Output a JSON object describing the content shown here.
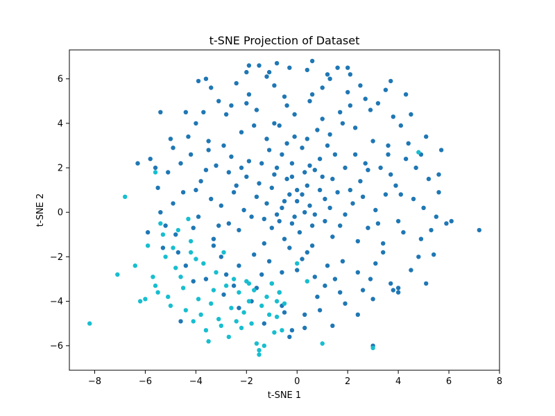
{
  "chart_data": {
    "type": "scatter",
    "title": "t-SNE Projection of Dataset",
    "xlabel": "t-SNE 1",
    "ylabel": "t-SNE 2",
    "xlim": [
      -9,
      8
    ],
    "ylim": [
      -7.1,
      7.3
    ],
    "xticks": [
      -8,
      -6,
      -4,
      -2,
      0,
      2,
      4,
      6,
      8
    ],
    "yticks": [
      -6,
      -4,
      -2,
      0,
      2,
      4,
      6
    ],
    "grid": false,
    "legend": "none",
    "series": [
      {
        "color": "#1f77b4",
        "points": [
          [
            0.0,
            0.5
          ],
          [
            -0.3,
            0.8
          ],
          [
            0.4,
            1.2
          ],
          [
            -0.6,
            0.2
          ],
          [
            0.7,
            -0.1
          ],
          [
            -1.0,
            1.1
          ],
          [
            1.1,
            0.6
          ],
          [
            -0.2,
            -0.5
          ],
          [
            0.3,
            1.8
          ],
          [
            -1.3,
            -0.3
          ],
          [
            1.4,
            1.5
          ],
          [
            -0.8,
            2.0
          ],
          [
            0.9,
            2.4
          ],
          [
            -1.6,
            0.7
          ],
          [
            1.7,
            -0.6
          ],
          [
            -0.5,
            -1.2
          ],
          [
            0.6,
            -1.5
          ],
          [
            -2.0,
            1.6
          ],
          [
            2.1,
            1.0
          ],
          [
            -1.1,
            2.8
          ],
          [
            1.2,
            3.0
          ],
          [
            -2.3,
            -0.8
          ],
          [
            2.4,
            -1.3
          ],
          [
            -0.1,
            3.4
          ],
          [
            0.2,
            -2.1
          ],
          [
            -2.6,
            2.5
          ],
          [
            2.7,
            2.2
          ],
          [
            -1.7,
            -1.9
          ],
          [
            1.8,
            -2.2
          ],
          [
            -3.0,
            0.3
          ],
          [
            3.1,
            0.1
          ],
          [
            -0.9,
            4.0
          ],
          [
            1.0,
            4.2
          ],
          [
            -2.2,
            3.6
          ],
          [
            2.3,
            3.8
          ],
          [
            -3.3,
            -1.5
          ],
          [
            3.4,
            -1.8
          ],
          [
            -1.4,
            -2.8
          ],
          [
            1.5,
            -3.0
          ],
          [
            -3.6,
            1.9
          ],
          [
            3.7,
            1.7
          ],
          [
            -0.4,
            4.8
          ],
          [
            0.5,
            5.0
          ],
          [
            -2.8,
            4.4
          ],
          [
            2.9,
            4.6
          ],
          [
            -3.9,
            -0.2
          ],
          [
            4.0,
            -0.4
          ],
          [
            -1.9,
            5.3
          ],
          [
            2.0,
            5.4
          ],
          [
            -0.7,
            -3.6
          ],
          [
            0.8,
            -3.8
          ],
          [
            -4.2,
            2.6
          ],
          [
            4.3,
            2.4
          ],
          [
            -3.5,
            3.2
          ],
          [
            3.6,
            3.0
          ],
          [
            -4.5,
            0.9
          ],
          [
            4.6,
            0.6
          ],
          [
            -2.5,
            -3.3
          ],
          [
            2.6,
            -3.5
          ],
          [
            -1.2,
            6.1
          ],
          [
            1.3,
            6.0
          ],
          [
            -3.1,
            5.0
          ],
          [
            3.2,
            4.9
          ],
          [
            -4.8,
            -1.0
          ],
          [
            4.9,
            -1.2
          ],
          [
            -0.3,
            6.5
          ],
          [
            0.4,
            6.4
          ],
          [
            -4.0,
            4.0
          ],
          [
            4.1,
            3.9
          ],
          [
            -5.1,
            1.8
          ],
          [
            5.2,
            1.5
          ],
          [
            -2.0,
            6.3
          ],
          [
            2.1,
            6.2
          ],
          [
            -0.6,
            -4.2
          ],
          [
            0.9,
            -4.4
          ],
          [
            -5.4,
            0.0
          ],
          [
            5.5,
            -0.2
          ],
          [
            -4.4,
            -2.4
          ],
          [
            4.5,
            -2.6
          ],
          [
            -3.6,
            -3.0
          ],
          [
            3.7,
            -3.2
          ],
          [
            -1.8,
            -4.0
          ],
          [
            1.9,
            -4.1
          ],
          [
            -0.2,
            2.2
          ],
          [
            0.1,
            -0.9
          ],
          [
            -0.8,
            -0.1
          ],
          [
            0.5,
            0.3
          ],
          [
            -0.4,
            1.5
          ],
          [
            0.7,
            1.9
          ],
          [
            -1.5,
            1.3
          ],
          [
            1.6,
            0.9
          ],
          [
            -1.0,
            -0.7
          ],
          [
            1.1,
            -0.4
          ],
          [
            -0.6,
            2.6
          ],
          [
            0.2,
            2.9
          ],
          [
            -2.1,
            0.1
          ],
          [
            2.2,
            0.4
          ],
          [
            -1.9,
            2.3
          ],
          [
            1.9,
            2.0
          ],
          [
            -2.4,
            1.2
          ],
          [
            2.5,
            1.4
          ],
          [
            -0.3,
            -1.6
          ],
          [
            0.4,
            -1.8
          ],
          [
            -1.2,
            3.3
          ],
          [
            1.3,
            3.5
          ],
          [
            -2.7,
            -0.5
          ],
          [
            2.8,
            -0.7
          ],
          [
            -1.3,
            -1.4
          ],
          [
            1.4,
            -1.1
          ],
          [
            -3.2,
            2.1
          ],
          [
            3.3,
            2.0
          ],
          [
            -0.7,
            3.9
          ],
          [
            0.8,
            3.7
          ],
          [
            -2.9,
            3.0
          ],
          [
            3.0,
            3.2
          ],
          [
            -3.4,
            0.6
          ],
          [
            3.5,
            0.8
          ],
          [
            -0.1,
            4.4
          ],
          [
            0.0,
            -2.6
          ],
          [
            -1.6,
            4.6
          ],
          [
            1.7,
            4.5
          ],
          [
            -2.3,
            -2.4
          ],
          [
            2.4,
            -2.7
          ],
          [
            -3.8,
            1.4
          ],
          [
            3.9,
            1.2
          ],
          [
            -2.6,
            4.8
          ],
          [
            2.7,
            5.1
          ],
          [
            -4.1,
            -0.7
          ],
          [
            4.2,
            -0.9
          ],
          [
            -1.0,
            -3.2
          ],
          [
            1.1,
            -3.3
          ],
          [
            -3.7,
            4.5
          ],
          [
            3.8,
            4.3
          ],
          [
            -4.6,
            2.2
          ],
          [
            4.7,
            2.0
          ],
          [
            -0.9,
            5.7
          ],
          [
            1.0,
            5.6
          ],
          [
            -3.0,
            -2.0
          ],
          [
            3.1,
            -2.3
          ],
          [
            -4.9,
            0.4
          ],
          [
            5.0,
            0.2
          ],
          [
            -2.4,
            5.8
          ],
          [
            2.5,
            5.7
          ],
          [
            -5.2,
            -0.6
          ],
          [
            5.3,
            -0.8
          ],
          [
            -4.3,
            3.4
          ],
          [
            4.4,
            3.1
          ],
          [
            -1.5,
            6.6
          ],
          [
            1.6,
            6.5
          ],
          [
            -2.9,
            -3.7
          ],
          [
            3.0,
            -3.9
          ],
          [
            -5.5,
            1.1
          ],
          [
            5.6,
            0.9
          ],
          [
            -3.4,
            5.6
          ],
          [
            3.5,
            5.5
          ],
          [
            -4.7,
            -1.8
          ],
          [
            4.8,
            -2.0
          ],
          [
            0.3,
            -4.6
          ],
          [
            -0.5,
            -4.5
          ],
          [
            -5.8,
            2.4
          ],
          [
            5.7,
            2.8
          ],
          [
            -4.9,
            2.9
          ],
          [
            4.9,
            2.6
          ],
          [
            -5.9,
            -0.9
          ],
          [
            5.9,
            -0.5
          ],
          [
            -1.3,
            -5.0
          ],
          [
            1.4,
            -5.1
          ],
          [
            0.6,
            6.8
          ],
          [
            -0.8,
            6.7
          ],
          [
            -4.1,
            -3.1
          ],
          [
            4.0,
            -3.4
          ],
          [
            -3.9,
            5.9
          ],
          [
            0.0,
            1.0
          ],
          [
            0.3,
            0.0
          ],
          [
            -0.5,
            0.5
          ],
          [
            0.9,
            1.0
          ],
          [
            -1.2,
            0.4
          ],
          [
            1.3,
            0.2
          ],
          [
            -0.2,
            1.6
          ],
          [
            0.6,
            -0.6
          ],
          [
            -0.9,
            1.7
          ],
          [
            1.0,
            1.6
          ],
          [
            -0.1,
            -0.2
          ],
          [
            0.2,
            0.8
          ],
          [
            -0.7,
            -0.4
          ],
          [
            0.5,
            2.1
          ],
          [
            -1.4,
            2.2
          ],
          [
            1.5,
            2.6
          ],
          [
            -1.8,
            -0.2
          ],
          [
            1.9,
            -0.1
          ],
          [
            -0.4,
            3.1
          ],
          [
            0.4,
            3.3
          ],
          [
            -2.5,
            0.9
          ],
          [
            2.6,
            0.7
          ],
          [
            -1.1,
            -2.2
          ],
          [
            1.2,
            -2.4
          ],
          [
            -2.2,
            2.0
          ],
          [
            2.3,
            2.6
          ],
          [
            -0.6,
            -2.7
          ],
          [
            0.7,
            -2.9
          ],
          [
            -3.1,
            -0.6
          ],
          [
            3.2,
            -0.5
          ],
          [
            -1.7,
            3.9
          ],
          [
            1.8,
            4.0
          ],
          [
            -2.7,
            1.8
          ],
          [
            2.8,
            1.9
          ],
          [
            -3.5,
            2.8
          ],
          [
            3.6,
            2.6
          ],
          [
            -0.5,
            5.2
          ],
          [
            0.6,
            5.3
          ],
          [
            -3.3,
            -1.2
          ],
          [
            3.4,
            -1.4
          ],
          [
            -2.0,
            4.9
          ],
          [
            2.1,
            4.8
          ],
          [
            -1.6,
            -3.4
          ],
          [
            1.7,
            -3.6
          ],
          [
            -4.0,
            1.0
          ],
          [
            4.1,
            0.8
          ],
          [
            -2.8,
            -2.8
          ],
          [
            2.9,
            -3.0
          ],
          [
            -4.4,
            4.5
          ],
          [
            4.5,
            4.4
          ],
          [
            -1.1,
            6.3
          ],
          [
            1.2,
            6.2
          ],
          [
            -5.0,
            3.3
          ],
          [
            5.1,
            3.4
          ],
          [
            -5.3,
            -1.6
          ],
          [
            5.4,
            -1.9
          ],
          [
            -3.6,
            6.0
          ],
          [
            3.7,
            5.9
          ],
          [
            -2.3,
            -4.3
          ],
          [
            2.4,
            -4.6
          ],
          [
            -1.9,
            6.6
          ],
          [
            2.0,
            6.5
          ],
          [
            -5.6,
            2.0
          ],
          [
            5.6,
            1.7
          ],
          [
            -0.2,
            -5.3
          ],
          [
            0.3,
            -5.2
          ],
          [
            3.8,
            -3.5
          ],
          [
            -6.3,
            2.2
          ],
          [
            6.1,
            -0.4
          ],
          [
            7.2,
            -0.8
          ],
          [
            5.1,
            -3.2
          ],
          [
            3.0,
            -6.0
          ],
          [
            4.0,
            -3.6
          ],
          [
            -5.4,
            4.5
          ],
          [
            4.3,
            5.3
          ],
          [
            -4.6,
            -4.9
          ],
          [
            -0.3,
            -5.6
          ]
        ]
      },
      {
        "color": "#17becf",
        "points": [
          [
            -8.2,
            -5.0
          ],
          [
            -7.1,
            -2.8
          ],
          [
            -6.8,
            0.7
          ],
          [
            -6.4,
            -2.4
          ],
          [
            -6.2,
            -4.0
          ],
          [
            -6.0,
            -3.9
          ],
          [
            -5.9,
            -1.5
          ],
          [
            -5.7,
            -2.9
          ],
          [
            -5.6,
            -3.3
          ],
          [
            -5.5,
            -3.6
          ],
          [
            -5.4,
            -0.5
          ],
          [
            -5.3,
            -1.0
          ],
          [
            -5.2,
            -2.0
          ],
          [
            -5.1,
            -3.8
          ],
          [
            -5.0,
            -4.2
          ],
          [
            -4.9,
            -1.6
          ],
          [
            -4.8,
            -2.5
          ],
          [
            -4.7,
            -0.8
          ],
          [
            -4.6,
            -2.9
          ],
          [
            -4.5,
            -3.4
          ],
          [
            -4.4,
            -4.4
          ],
          [
            -4.3,
            -0.3
          ],
          [
            -4.2,
            -1.3
          ],
          [
            -4.1,
            -4.9
          ],
          [
            -4.0,
            -2.1
          ],
          [
            -3.9,
            -3.9
          ],
          [
            -3.8,
            -4.6
          ],
          [
            -3.7,
            -2.3
          ],
          [
            -3.6,
            -5.3
          ],
          [
            -3.5,
            -5.8
          ],
          [
            -3.4,
            -4.1
          ],
          [
            -3.3,
            -3.5
          ],
          [
            -3.2,
            -2.7
          ],
          [
            -3.1,
            -4.8
          ],
          [
            -3.0,
            -5.1
          ],
          [
            -2.9,
            -1.8
          ],
          [
            -2.8,
            -3.3
          ],
          [
            -2.7,
            -5.6
          ],
          [
            -2.6,
            -4.3
          ],
          [
            -2.5,
            -3.0
          ],
          [
            -2.4,
            -4.9
          ],
          [
            -2.3,
            -3.6
          ],
          [
            -2.2,
            -5.2
          ],
          [
            -2.1,
            -4.5
          ],
          [
            -2.0,
            -3.1
          ],
          [
            -1.9,
            -4.0
          ],
          [
            -1.8,
            -5.0
          ],
          [
            -1.7,
            -3.5
          ],
          [
            -1.6,
            -5.9
          ],
          [
            -1.5,
            -6.2
          ],
          [
            -1.4,
            -4.2
          ],
          [
            -1.3,
            -6.0
          ],
          [
            -1.2,
            -3.8
          ],
          [
            -1.1,
            -4.6
          ],
          [
            -1.0,
            -3.2
          ],
          [
            -0.9,
            -5.4
          ],
          [
            -0.8,
            -4.0
          ],
          [
            -0.7,
            -3.6
          ],
          [
            -0.6,
            -5.3
          ],
          [
            -0.5,
            -4.1
          ],
          [
            0.0,
            -2.3
          ],
          [
            0.4,
            -3.1
          ],
          [
            1.0,
            -5.9
          ],
          [
            -1.5,
            -6.4
          ],
          [
            4.8,
            2.7
          ],
          [
            -5.6,
            1.8
          ],
          [
            -4.2,
            -1.8
          ],
          [
            3.0,
            -6.1
          ],
          [
            -1.9,
            -3.2
          ],
          [
            -0.8,
            -4.7
          ]
        ]
      }
    ]
  }
}
